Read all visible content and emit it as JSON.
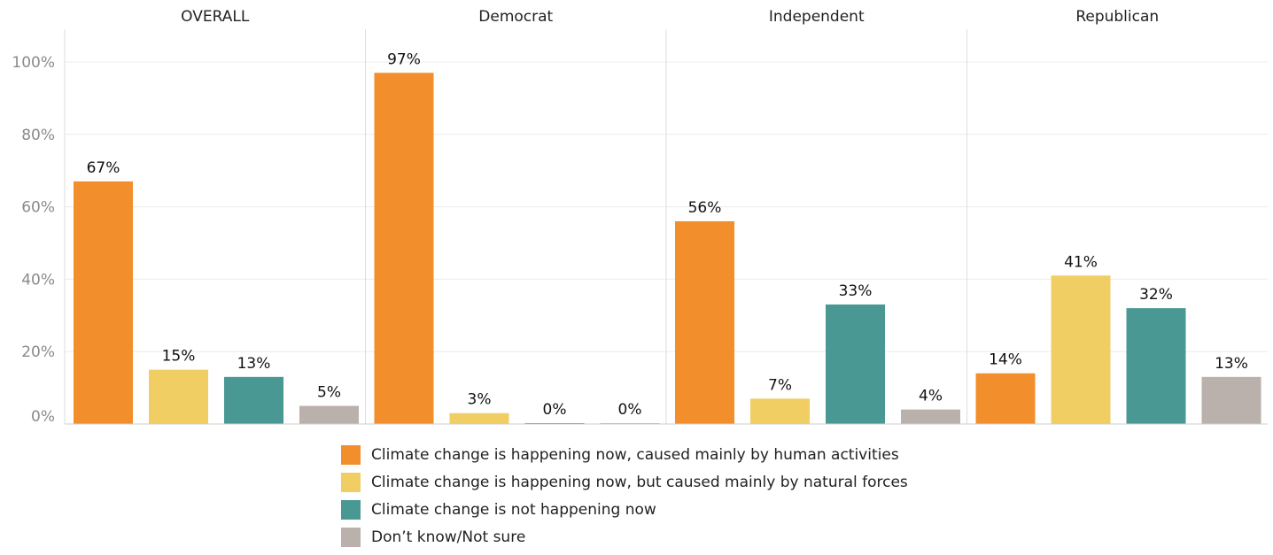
{
  "chart_data": {
    "type": "bar",
    "panels": [
      "OVERALL",
      "Democrat",
      "Independent",
      "Republican"
    ],
    "categories": [
      "Climate change is happening now, caused mainly by human activities",
      "Climate change is happening now, but caused mainly by natural forces",
      "Climate change is not happening now",
      "Don’t know/Not sure"
    ],
    "colors": [
      "#F28E2B",
      "#F1CE63",
      "#499894",
      "#BAB0AC"
    ],
    "values": [
      [
        67,
        15,
        13,
        5
      ],
      [
        97,
        3,
        0,
        0
      ],
      [
        56,
        7,
        33,
        4
      ],
      [
        14,
        41,
        32,
        13
      ]
    ],
    "value_labels": [
      [
        "67%",
        "15%",
        "13%",
        "5%"
      ],
      [
        "97%",
        "3%",
        "0%",
        "0%"
      ],
      [
        "56%",
        "7%",
        "33%",
        "4%"
      ],
      [
        "14%",
        "41%",
        "32%",
        "13%"
      ]
    ],
    "y_ticks": [
      0,
      20,
      40,
      60,
      80,
      100
    ],
    "y_tick_labels": [
      "0%",
      "20%",
      "40%",
      "60%",
      "80%",
      "100%"
    ],
    "ylim": [
      0,
      100
    ],
    "grid": true,
    "legend_position": "bottom"
  }
}
